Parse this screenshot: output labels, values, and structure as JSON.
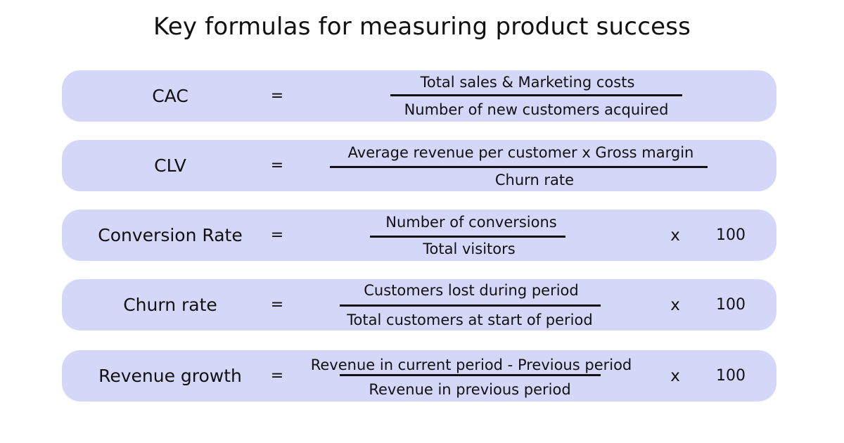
{
  "title": "Key formulas for measuring product success",
  "equals_sign": "=",
  "times_sign": "x",
  "formulas": [
    {
      "metric": "CAC",
      "numerator": "Total sales & Marketing costs",
      "denominator": "Number of new customers acquired",
      "multiplier": null
    },
    {
      "metric": "CLV",
      "numerator": "Average revenue per customer x Gross margin",
      "denominator": "Churn rate",
      "multiplier": null
    },
    {
      "metric": "Conversion Rate",
      "numerator": "Number of conversions",
      "denominator": "Total visitors",
      "multiplier": "100"
    },
    {
      "metric": "Churn rate",
      "numerator": "Customers lost during period",
      "denominator": "Total customers at start of period",
      "multiplier": "100"
    },
    {
      "metric": "Revenue growth",
      "numerator": "Revenue in current period - Previous period",
      "denominator": "Revenue in previous period",
      "multiplier": "100"
    }
  ]
}
